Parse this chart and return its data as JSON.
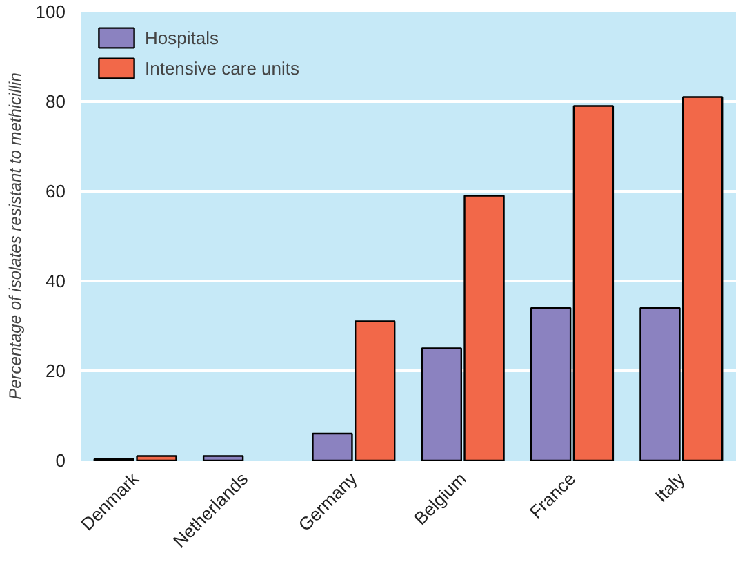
{
  "chart_data": {
    "type": "bar",
    "ylabel": "Percentage of isolates resistant to methicillin",
    "categories": [
      "Denmark",
      "Netherlands",
      "Germany",
      "Belgium",
      "France",
      "Italy"
    ],
    "series": [
      {
        "name": "Hospitals",
        "color": "#8b82c0",
        "values": [
          0.3,
          1,
          6,
          25,
          34,
          34
        ]
      },
      {
        "name": "Intensive care units",
        "color": "#f26849",
        "values": [
          1,
          null,
          31,
          59,
          79,
          81
        ]
      }
    ],
    "ylim": [
      0,
      100
    ],
    "yticks": [
      0,
      20,
      40,
      60,
      80,
      100
    ],
    "grid": "y",
    "legend": "top left"
  }
}
